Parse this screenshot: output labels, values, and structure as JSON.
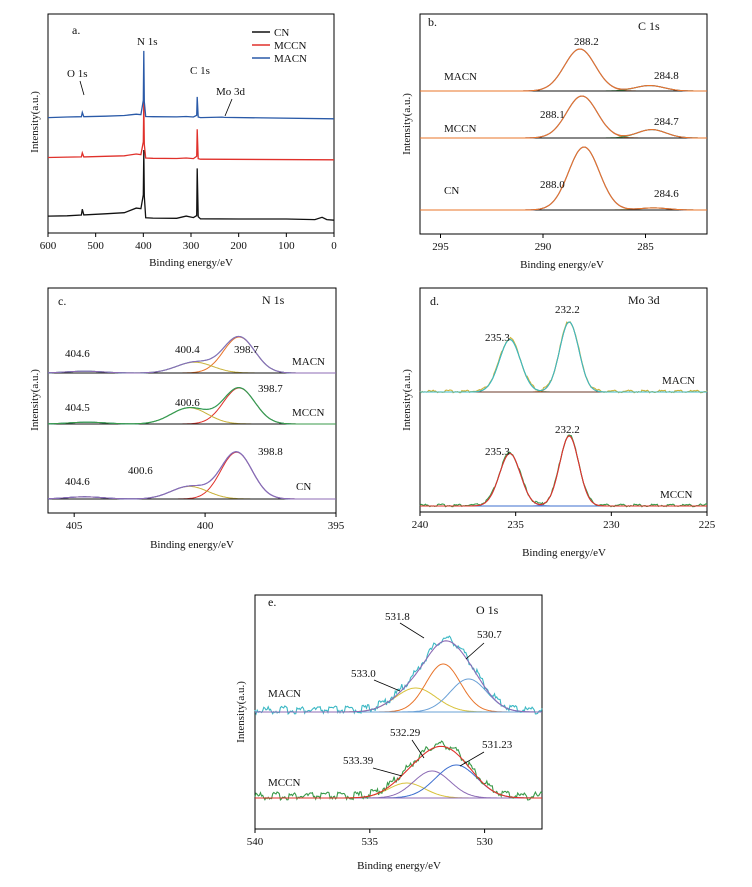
{
  "colors": {
    "cn": "#111111",
    "mccn": "#e0312b",
    "macn": "#2a5aa8",
    "fit_red": "#e0312b",
    "fit_orange": "#e8742a",
    "fit_blue": "#3d6fcf",
    "fit_teal": "#3bb8c4",
    "fit_olive": "#c9b23a",
    "fit_purple": "#8c6bb5",
    "fit_gold": "#d8c23c",
    "fit_green": "#3a9a4a",
    "fit_lightblue": "#6aa0d6",
    "fit_brown": "#6b3a2a"
  },
  "chart_data": [
    {
      "id": "a",
      "type": "line",
      "panel_label": "a.",
      "xlabel": "Binding energy/eV",
      "ylabel": "Intensity(a.u.)",
      "xlim": [
        600,
        0
      ],
      "xticks": [
        600,
        500,
        400,
        300,
        200,
        100,
        0
      ],
      "legend": [
        "CN",
        "MCCN",
        "MACN"
      ],
      "legend_position": "top-right",
      "annotations": [
        "O 1s",
        "N 1s",
        "C 1s",
        "Mo 3d"
      ],
      "series": [
        {
          "name": "CN",
          "offset": 0,
          "points": [
            [
              600,
              0.25
            ],
            [
              560,
              0.28
            ],
            [
              530,
              0.35
            ],
            [
              528,
              0.85
            ],
            [
              525,
              0.36
            ],
            [
              480,
              0.45
            ],
            [
              440,
              0.55
            ],
            [
              415,
              0.95
            ],
            [
              405,
              0.9
            ],
            [
              400,
              2.1
            ],
            [
              399,
              6.0
            ],
            [
              398,
              2.0
            ],
            [
              395,
              0.1
            ],
            [
              380,
              0.08
            ],
            [
              330,
              0.06
            ],
            [
              310,
              0.25
            ],
            [
              295,
              0.12
            ],
            [
              288,
              0.3
            ],
            [
              287,
              4.4
            ],
            [
              285,
              0.2
            ],
            [
              280,
              0.02
            ],
            [
              200,
              0
            ],
            [
              100,
              0
            ],
            [
              40,
              -0.05
            ],
            [
              25,
              0.15
            ],
            [
              15,
              -0.05
            ],
            [
              0,
              -0.1
            ]
          ]
        },
        {
          "name": "MCCN",
          "offset": 2.3,
          "points": [
            [
              600,
              0.15
            ],
            [
              560,
              0.18
            ],
            [
              530,
              0.2
            ],
            [
              528,
              0.55
            ],
            [
              525,
              0.2
            ],
            [
              480,
              0.25
            ],
            [
              440,
              0.3
            ],
            [
              415,
              0.45
            ],
            [
              405,
              0.4
            ],
            [
              400,
              1.5
            ],
            [
              399,
              5.0
            ],
            [
              398,
              1.3
            ],
            [
              395,
              0.1
            ],
            [
              380,
              0.08
            ],
            [
              330,
              0.06
            ],
            [
              310,
              0.1
            ],
            [
              295,
              0.05
            ],
            [
              288,
              0.25
            ],
            [
              287,
              2.6
            ],
            [
              285,
              0.05
            ],
            [
              280,
              0
            ],
            [
              0,
              -0.05
            ]
          ]
        },
        {
          "name": "MACN",
          "offset": 3.9,
          "points": [
            [
              600,
              0.0
            ],
            [
              560,
              0.05
            ],
            [
              530,
              0.08
            ],
            [
              528,
              0.45
            ],
            [
              525,
              0.08
            ],
            [
              480,
              0.12
            ],
            [
              440,
              0.18
            ],
            [
              415,
              0.3
            ],
            [
              405,
              0.25
            ],
            [
              400,
              1.5
            ],
            [
              399,
              5.8
            ],
            [
              398,
              1.4
            ],
            [
              395,
              0.1
            ],
            [
              380,
              0.08
            ],
            [
              330,
              0.06
            ],
            [
              310,
              0.1
            ],
            [
              295,
              0.05
            ],
            [
              288,
              0.2
            ],
            [
              287,
              1.8
            ],
            [
              285,
              0.05
            ],
            [
              280,
              0.0
            ],
            [
              235,
              0.04
            ],
            [
              230,
              0.02
            ],
            [
              0,
              -0.1
            ]
          ]
        }
      ]
    },
    {
      "id": "b",
      "type": "line",
      "panel_label": "b.",
      "title": "C 1s",
      "xlabel": "Binding energy/eV",
      "ylabel": "Intensity(a.u.)",
      "xlim": [
        296,
        282
      ],
      "xticks": [
        295,
        290,
        285
      ],
      "series": [
        {
          "name": "MACN",
          "offset": 2,
          "peaks": [
            [
              288.2,
              1.0,
              0.75
            ],
            [
              284.8,
              0.13,
              0.7
            ]
          ]
        },
        {
          "name": "MCCN",
          "offset": 1,
          "peaks": [
            [
              288.1,
              1.0,
              0.75
            ],
            [
              284.7,
              0.2,
              0.7
            ]
          ]
        },
        {
          "name": "CN",
          "offset": 0,
          "peaks": [
            [
              288.0,
              1.5,
              0.75
            ],
            [
              284.6,
              0.05,
              0.7
            ]
          ]
        }
      ],
      "peak_labels": [
        {
          "series": "MACN",
          "text": "288.2"
        },
        {
          "series": "MACN",
          "text": "284.8"
        },
        {
          "series": "MCCN",
          "text": "288.1"
        },
        {
          "series": "MCCN",
          "text": "284.7"
        },
        {
          "series": "CN",
          "text": "288.0"
        },
        {
          "series": "CN",
          "text": "284.6"
        }
      ]
    },
    {
      "id": "c",
      "type": "line",
      "panel_label": "c.",
      "title": "N 1s",
      "xlabel": "Binding energy/eV",
      "ylabel": "Intensity(a.u.)",
      "xlim": [
        406,
        395
      ],
      "xticks": [
        405,
        400,
        395
      ],
      "series": [
        {
          "name": "MACN",
          "offset": 2,
          "peaks": [
            [
              398.7,
              1.0,
              0.6
            ],
            [
              400.4,
              0.3,
              0.7
            ],
            [
              404.6,
              0.05,
              0.7
            ]
          ]
        },
        {
          "name": "MCCN",
          "offset": 1,
          "peaks": [
            [
              398.7,
              1.0,
              0.6
            ],
            [
              400.6,
              0.45,
              0.7
            ],
            [
              404.5,
              0.05,
              0.7
            ]
          ]
        },
        {
          "name": "CN",
          "offset": 0,
          "peaks": [
            [
              398.8,
              1.3,
              0.6
            ],
            [
              400.6,
              0.35,
              0.7
            ],
            [
              404.6,
              0.06,
              0.7
            ]
          ]
        }
      ],
      "peak_labels": [
        {
          "series": "MACN",
          "text": "398.7"
        },
        {
          "series": "MACN",
          "text": "400.4"
        },
        {
          "series": "MACN",
          "text": "404.6"
        },
        {
          "series": "MCCN",
          "text": "398.7"
        },
        {
          "series": "MCCN",
          "text": "400.6"
        },
        {
          "series": "MCCN",
          "text": "404.5"
        },
        {
          "series": "CN",
          "text": "398.8"
        },
        {
          "series": "CN",
          "text": "400.6"
        },
        {
          "series": "CN",
          "text": "404.6"
        }
      ]
    },
    {
      "id": "d",
      "type": "line",
      "panel_label": "d.",
      "title": "Mo 3d",
      "xlabel": "Binding energy/eV",
      "ylabel": "Intensity(a.u.)",
      "xlim": [
        240,
        225
      ],
      "xticks": [
        240,
        235,
        230,
        225
      ],
      "series": [
        {
          "name": "MACN",
          "offset": 1,
          "peaks": [
            [
              235.3,
              0.75,
              0.55
            ],
            [
              232.2,
              1.0,
              0.5
            ]
          ]
        },
        {
          "name": "MCCN",
          "offset": 0,
          "peaks": [
            [
              235.3,
              0.75,
              0.55
            ],
            [
              232.2,
              1.0,
              0.5
            ]
          ]
        }
      ],
      "peak_labels": [
        {
          "series": "MACN",
          "text": "235.3"
        },
        {
          "series": "MACN",
          "text": "232.2"
        },
        {
          "series": "MCCN",
          "text": "235.3"
        },
        {
          "series": "MCCN",
          "text": "232.2"
        }
      ]
    },
    {
      "id": "e",
      "type": "line",
      "panel_label": "e.",
      "title": "O 1s",
      "xlabel": "Binding energy/eV",
      "ylabel": "Intensity(a.u.)",
      "xlim": [
        540,
        527.5
      ],
      "xticks": [
        540,
        535,
        530
      ],
      "series": [
        {
          "name": "MACN",
          "offset": 1,
          "peaks": [
            [
              533.0,
              0.4,
              0.9
            ],
            [
              531.8,
              0.8,
              0.75
            ],
            [
              530.7,
              0.55,
              0.8
            ]
          ]
        },
        {
          "name": "MCCN",
          "offset": 0,
          "peaks": [
            [
              533.39,
              0.25,
              0.8
            ],
            [
              532.29,
              0.45,
              0.8
            ],
            [
              531.23,
              0.55,
              0.9
            ]
          ]
        }
      ],
      "peak_labels": [
        {
          "series": "MACN",
          "text": "533.0"
        },
        {
          "series": "MACN",
          "text": "531.8"
        },
        {
          "series": "MACN",
          "text": "530.7"
        },
        {
          "series": "MCCN",
          "text": "533.39"
        },
        {
          "series": "MCCN",
          "text": "532.29"
        },
        {
          "series": "MCCN",
          "text": "531.23"
        }
      ]
    }
  ]
}
